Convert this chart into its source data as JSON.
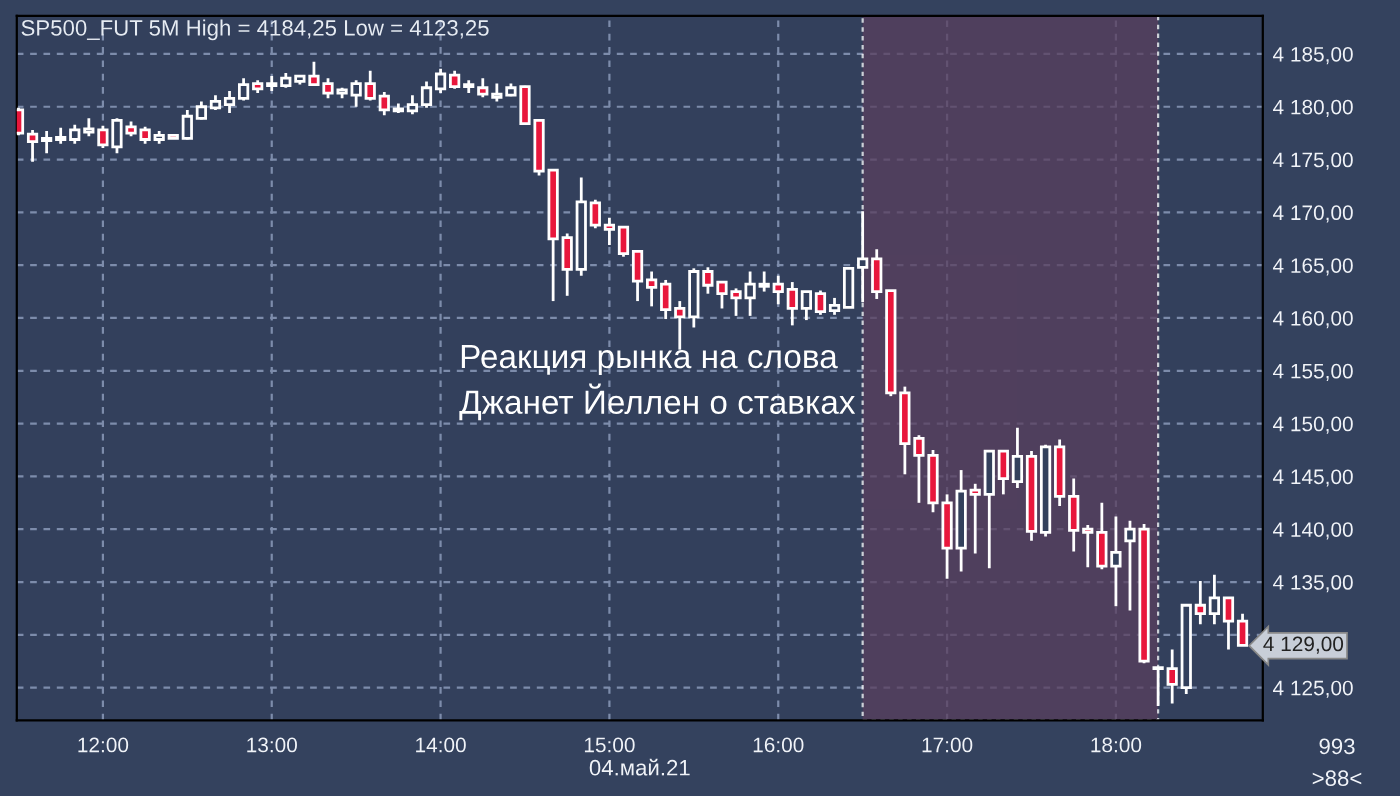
{
  "chart_data": {
    "type": "candlestick",
    "title": "SP500_FUT 5M High = 4184,25 Low = 4123,25",
    "xlabel": "04.май.21",
    "x": [
      11.5,
      11.5833,
      11.6667,
      11.75,
      11.8333,
      11.9167,
      12.0,
      12.0833,
      12.1667,
      12.25,
      12.3333,
      12.4167,
      12.5,
      12.5833,
      12.6667,
      12.75,
      12.8333,
      12.9167,
      13.0,
      13.0833,
      13.1667,
      13.25,
      13.3333,
      13.4167,
      13.5,
      13.5833,
      13.6667,
      13.75,
      13.8333,
      13.9167,
      14.0,
      14.0833,
      14.1667,
      14.25,
      14.3333,
      14.4167,
      14.5,
      14.5833,
      14.6667,
      14.75,
      14.8333,
      14.9167,
      15.0,
      15.0833,
      15.1667,
      15.25,
      15.3333,
      15.4167,
      15.5,
      15.5833,
      15.6667,
      15.75,
      15.8333,
      15.9167,
      16.0,
      16.0833,
      16.1667,
      16.25,
      16.3333,
      16.4167,
      16.5,
      16.5833,
      16.6667,
      16.75,
      16.8333,
      16.9167,
      17.0,
      17.0833,
      17.1667,
      17.25,
      17.3333,
      17.4167,
      17.5,
      17.5833,
      17.6667,
      17.75,
      17.8333,
      17.9167,
      18.0,
      18.0833,
      18.1667,
      18.25,
      18.3333,
      18.4167,
      18.5,
      18.5833,
      18.6667,
      18.75
    ],
    "ohlc": [
      [
        4179.7,
        4179.9,
        4177.3,
        4177.5
      ],
      [
        4177.4,
        4177.8,
        4174.8,
        4176.7
      ],
      [
        4176.8,
        4177.7,
        4175.6,
        4177.0
      ],
      [
        4176.9,
        4178.0,
        4176.5,
        4177.1
      ],
      [
        4176.9,
        4178.3,
        4176.5,
        4177.8
      ],
      [
        4177.6,
        4178.9,
        4177.2,
        4177.9
      ],
      [
        4177.8,
        4178.2,
        4176.1,
        4176.4
      ],
      [
        4176.2,
        4178.9,
        4175.6,
        4178.7
      ],
      [
        4178.1,
        4178.6,
        4177.2,
        4177.5
      ],
      [
        4177.8,
        4178.1,
        4176.5,
        4176.9
      ],
      [
        4176.9,
        4177.7,
        4176.5,
        4177.3
      ],
      [
        4177.3,
        4177.3,
        4177.0,
        4177.0
      ],
      [
        4177.0,
        4179.7,
        4176.9,
        4179.1
      ],
      [
        4178.9,
        4180.5,
        4178.8,
        4180.0
      ],
      [
        4179.9,
        4181.1,
        4179.7,
        4180.5
      ],
      [
        4180.2,
        4181.5,
        4179.4,
        4180.8
      ],
      [
        4180.8,
        4182.7,
        4180.6,
        4182.1
      ],
      [
        4182.2,
        4182.5,
        4181.3,
        4181.7
      ],
      [
        4182.0,
        4182.9,
        4181.5,
        4182.2
      ],
      [
        4182.0,
        4183.2,
        4181.8,
        4182.7
      ],
      [
        4182.4,
        4183.0,
        4182.1,
        4182.9
      ],
      [
        4182.9,
        4184.25,
        4182.0,
        4182.1
      ],
      [
        4182.2,
        4182.7,
        4180.8,
        4181.3
      ],
      [
        4181.3,
        4181.8,
        4180.8,
        4181.6
      ],
      [
        4181.1,
        4182.5,
        4180.0,
        4182.2
      ],
      [
        4182.2,
        4183.4,
        4180.6,
        4180.8
      ],
      [
        4181.0,
        4181.4,
        4179.2,
        4179.7
      ],
      [
        4179.6,
        4180.3,
        4179.4,
        4179.8
      ],
      [
        4179.6,
        4181.1,
        4179.3,
        4180.2
      ],
      [
        4180.2,
        4182.4,
        4179.9,
        4181.8
      ],
      [
        4181.7,
        4183.6,
        4181.3,
        4183.1
      ],
      [
        4183.0,
        4183.4,
        4181.7,
        4181.9
      ],
      [
        4181.9,
        4182.5,
        4181.3,
        4182.1
      ],
      [
        4181.8,
        4182.7,
        4180.9,
        4181.2
      ],
      [
        4180.9,
        4182.2,
        4180.5,
        4181.2
      ],
      [
        4181.1,
        4182.2,
        4181.0,
        4181.8
      ],
      [
        4181.9,
        4182.0,
        4178.3,
        4178.4
      ],
      [
        4178.7,
        4178.7,
        4173.5,
        4173.9
      ],
      [
        4174.0,
        4174.0,
        4161.6,
        4167.5
      ],
      [
        4167.6,
        4168.0,
        4162.1,
        4164.6
      ],
      [
        4164.6,
        4173.3,
        4164.0,
        4171.0
      ],
      [
        4170.9,
        4171.2,
        4168.5,
        4168.8
      ],
      [
        4168.8,
        4169.5,
        4166.9,
        4168.4
      ],
      [
        4168.6,
        4168.6,
        4165.8,
        4166.1
      ],
      [
        4166.3,
        4166.4,
        4161.6,
        4163.5
      ],
      [
        4163.6,
        4164.4,
        4161.1,
        4162.9
      ],
      [
        4163.2,
        4163.6,
        4159.9,
        4160.8
      ],
      [
        4160.9,
        4161.6,
        4157.0,
        4160.1
      ],
      [
        4160.1,
        4164.7,
        4159.1,
        4164.4
      ],
      [
        4164.4,
        4164.8,
        4162.3,
        4163.1
      ],
      [
        4163.4,
        4163.4,
        4160.9,
        4162.3
      ],
      [
        4162.5,
        4162.8,
        4160.2,
        4161.9
      ],
      [
        4161.9,
        4164.4,
        4160.2,
        4163.2
      ],
      [
        4163.0,
        4164.4,
        4162.5,
        4163.2
      ],
      [
        4163.2,
        4164.0,
        4161.3,
        4162.5
      ],
      [
        4162.7,
        4163.4,
        4159.3,
        4160.9
      ],
      [
        4160.9,
        4162.5,
        4159.8,
        4162.5
      ],
      [
        4162.3,
        4162.6,
        4160.3,
        4160.6
      ],
      [
        4160.7,
        4161.9,
        4160.3,
        4161.2
      ],
      [
        4161.0,
        4164.7,
        4161.0,
        4164.7
      ],
      [
        4164.8,
        4170.1,
        4161.5,
        4165.6
      ],
      [
        4165.6,
        4166.5,
        4161.8,
        4162.5
      ],
      [
        4162.6,
        4162.6,
        4152.6,
        4152.9
      ],
      [
        4152.9,
        4153.5,
        4145.2,
        4148.1
      ],
      [
        4148.6,
        4148.9,
        4142.5,
        4147.0
      ],
      [
        4147.0,
        4147.5,
        4141.6,
        4142.5
      ],
      [
        4142.5,
        4143.3,
        4135.3,
        4138.2
      ],
      [
        4138.2,
        4145.6,
        4136.0,
        4143.6
      ],
      [
        4143.7,
        4144.3,
        4137.7,
        4143.3
      ],
      [
        4143.3,
        4147.4,
        4136.3,
        4147.4
      ],
      [
        4147.4,
        4147.4,
        4143.3,
        4144.8
      ],
      [
        4144.5,
        4149.6,
        4143.9,
        4146.9
      ],
      [
        4146.9,
        4147.4,
        4138.9,
        4139.8
      ],
      [
        4139.7,
        4148.0,
        4139.3,
        4147.8
      ],
      [
        4147.8,
        4148.5,
        4142.2,
        4143.1
      ],
      [
        4143.1,
        4144.8,
        4137.9,
        4139.9
      ],
      [
        4140.0,
        4140.4,
        4136.4,
        4139.7
      ],
      [
        4139.7,
        4142.5,
        4136.2,
        4136.5
      ],
      [
        4136.5,
        4141.2,
        4132.7,
        4137.8
      ],
      [
        4138.9,
        4140.8,
        4132.3,
        4140.0
      ],
      [
        4140.0,
        4140.5,
        4127.3,
        4127.5
      ],
      [
        4126.8,
        4126.9,
        4123.25,
        4126.9
      ],
      [
        4126.8,
        4128.6,
        4123.5,
        4125.3
      ],
      [
        4125.0,
        4132.9,
        4124.4,
        4132.8
      ],
      [
        4132.8,
        4135.1,
        4131.0,
        4132.0
      ],
      [
        4132.0,
        4135.7,
        4131.0,
        4133.5
      ],
      [
        4133.5,
        4133.5,
        4128.6,
        4131.3
      ],
      [
        4131.3,
        4132.0,
        4129.0,
        4129.0
      ]
    ],
    "colors": [
      "#e8173c",
      "#e8173c",
      "#ffffff",
      "#ffffff",
      "#ffffff",
      "#ffffff",
      "#e8173c",
      "#ffffff",
      "#e8173c",
      "#e8173c",
      "#ffffff",
      "#e8173c",
      "#ffffff",
      "#ffffff",
      "#ffffff",
      "#ffffff",
      "#ffffff",
      "#e8173c",
      "#ffffff",
      "#ffffff",
      "#ffffff",
      "#e8173c",
      "#e8173c",
      "#ffffff",
      "#ffffff",
      "#e8173c",
      "#e8173c",
      "#ffffff",
      "#ffffff",
      "#ffffff",
      "#ffffff",
      "#e8173c",
      "#ffffff",
      "#e8173c",
      "#ffffff",
      "#ffffff",
      "#e8173c",
      "#e8173c",
      "#e8173c",
      "#e8173c",
      "#ffffff",
      "#e8173c",
      "#e8173c",
      "#e8173c",
      "#e8173c",
      "#e8173c",
      "#e8173c",
      "#e8173c",
      "#ffffff",
      "#e8173c",
      "#e8173c",
      "#e8173c",
      "#ffffff",
      "#ffffff",
      "#e8173c",
      "#e8173c",
      "#ffffff",
      "#e8173c",
      "#ffffff",
      "#ffffff",
      "#ffffff",
      "#e8173c",
      "#e8173c",
      "#e8173c",
      "#e8173c",
      "#e8173c",
      "#e8173c",
      "#ffffff",
      "#e8173c",
      "#ffffff",
      "#e8173c",
      "#ffffff",
      "#e8173c",
      "#ffffff",
      "#e8173c",
      "#e8173c",
      "#e8173c",
      "#e8173c",
      "#ffffff",
      "#ffffff",
      "#e8173c",
      "#ffffff",
      "#e8173c",
      "#ffffff",
      "#e8173c",
      "#ffffff",
      "#e8173c",
      "#e8173c"
    ],
    "xlim": [
      11.49,
      18.87
    ],
    "xticks": [
      {
        "value": 12,
        "label": "12:00"
      },
      {
        "value": 13,
        "label": "13:00"
      },
      {
        "value": 14,
        "label": "14:00"
      },
      {
        "value": 15,
        "label": "15:00"
      },
      {
        "value": 16,
        "label": "16:00"
      },
      {
        "value": 17,
        "label": "17:00"
      },
      {
        "value": 18,
        "label": "18:00"
      }
    ],
    "ylim": [
      4121.9,
      4188.6
    ],
    "yticks": [
      {
        "value": 4125,
        "label": "4 125,00"
      },
      {
        "value": 4130,
        "label": null
      },
      {
        "value": 4135,
        "label": "4 135,00"
      },
      {
        "value": 4140,
        "label": "4 140,00"
      },
      {
        "value": 4145,
        "label": "4 145,00"
      },
      {
        "value": 4150,
        "label": "4 150,00"
      },
      {
        "value": 4155,
        "label": "4 155,00"
      },
      {
        "value": 4160,
        "label": "4 160,00"
      },
      {
        "value": 4165,
        "label": "4 165,00"
      },
      {
        "value": 4170,
        "label": "4 170,00"
      },
      {
        "value": 4175,
        "label": "4 175,00"
      },
      {
        "value": 4180,
        "label": "4 180,00"
      },
      {
        "value": 4185,
        "label": "4 185,00"
      }
    ],
    "grid": true,
    "bands": [
      {
        "axis": "x",
        "from": 16.5,
        "to": 18.25,
        "color": "#5a3f5e"
      }
    ],
    "annotations": [
      "Реакция рынка на слова\nДжанет Йеллен о ставках",
      "4 129,00",
      "993",
      ">88<"
    ]
  }
}
